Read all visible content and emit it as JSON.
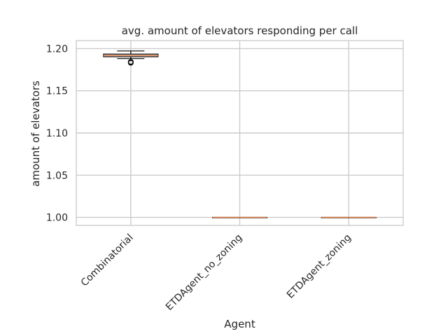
{
  "chart_data": {
    "type": "box",
    "title": "avg. amount of elevators responding per call",
    "xlabel": "Agent",
    "ylabel": "amount of elevators",
    "categories": [
      "Combinatorial",
      "ETDAgent_no_zoning",
      "ETDAgent_zoning"
    ],
    "boxes": [
      {
        "name": "Combinatorial",
        "whislo": 1.1882,
        "q1": 1.1904,
        "med": 1.1918,
        "q3": 1.1935,
        "whishi": 1.1972,
        "fliers": [
          1.1843,
          1.1833
        ]
      },
      {
        "name": "ETDAgent_no_zoning",
        "whislo": 1.0,
        "q1": 1.0,
        "med": 1.0,
        "q3": 1.0,
        "whishi": 1.0,
        "fliers": []
      },
      {
        "name": "ETDAgent_zoning",
        "whislo": 1.0,
        "q1": 1.0,
        "med": 1.0,
        "q3": 1.0,
        "whishi": 1.0,
        "fliers": []
      }
    ],
    "ylim": [
      0.9905,
      1.2095
    ],
    "yticks": [
      1.0,
      1.05,
      1.1,
      1.15,
      1.2
    ],
    "ytick_labels": [
      "1.00",
      "1.05",
      "1.10",
      "1.15",
      "1.20"
    ],
    "grid": true,
    "box_face_color": "#ffffff",
    "median_color": "#dd8452",
    "grid_color": "#cccccc",
    "spine_color": "#cccccc"
  }
}
